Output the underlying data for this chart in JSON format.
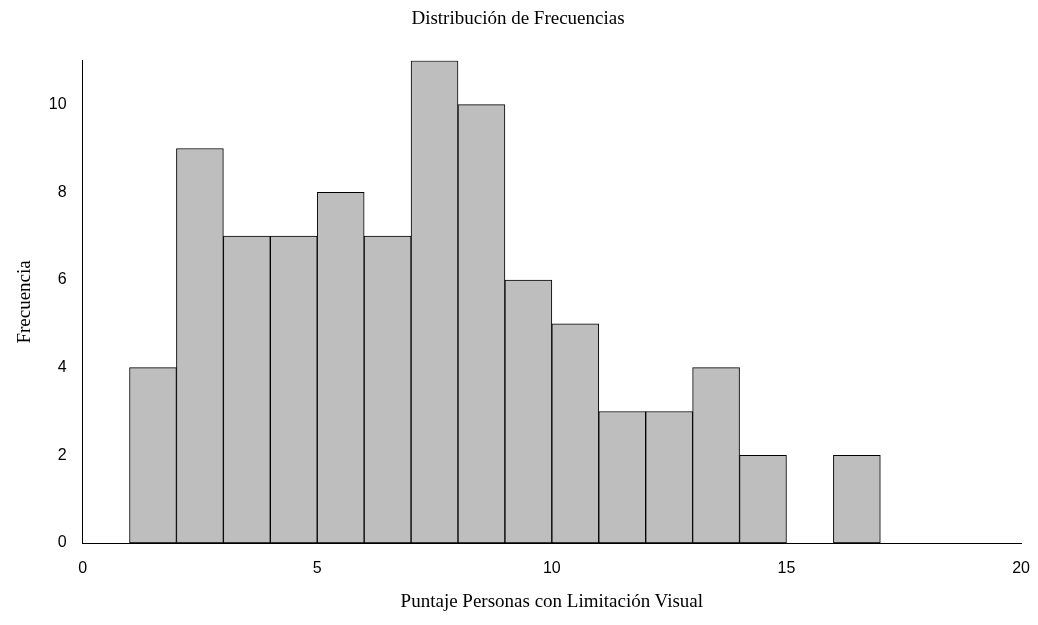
{
  "chart_data": {
    "type": "histogram",
    "title": "Distribución de Frecuencias",
    "xlabel": "Puntaje Personas con Limitación Visual",
    "ylabel": "Frecuencia",
    "bins": [
      1,
      2,
      3,
      4,
      5,
      6,
      7,
      8,
      9,
      10,
      11,
      12,
      13,
      14,
      15,
      16,
      17
    ],
    "values": [
      4,
      9,
      7,
      7,
      8,
      7,
      11,
      10,
      6,
      5,
      3,
      3,
      4,
      2,
      0,
      2
    ],
    "color": "#bebebe",
    "xlim": [
      0,
      20
    ],
    "xticks": [
      0,
      5,
      10,
      15,
      20
    ],
    "ylim": [
      0,
      11
    ],
    "yticks": [
      0,
      2,
      4,
      6,
      8,
      10
    ],
    "grid": false,
    "legend": false
  }
}
